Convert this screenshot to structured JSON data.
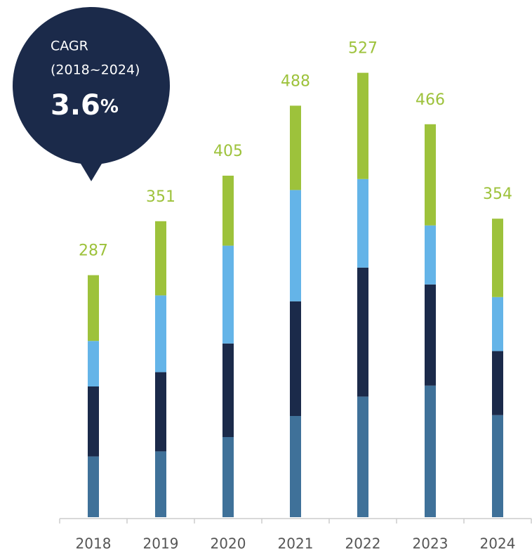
{
  "chart_data": {
    "type": "stacked_bar",
    "categories": [
      "2018",
      "2019",
      "2020",
      "2021",
      "2022",
      "2023",
      "2024"
    ],
    "series": [
      {
        "color": "#3f7199",
        "values": [
          72,
          78,
          95,
          120,
          143,
          156,
          121
        ]
      },
      {
        "color": "#1b2a4a",
        "values": [
          83,
          94,
          111,
          136,
          153,
          120,
          76
        ]
      },
      {
        "color": "#64b4e8",
        "values": [
          54,
          91,
          116,
          132,
          105,
          70,
          64
        ]
      },
      {
        "color": "#9dc23b",
        "values": [
          78,
          88,
          83,
          100,
          126,
          120,
          93
        ]
      }
    ],
    "totals": [
      287,
      351,
      405,
      488,
      527,
      466,
      354
    ],
    "totals_color": "#9dc23b",
    "ylim": [
      0,
      600
    ],
    "annotation": {
      "label": "CAGR",
      "period": "(2018~2024)",
      "value": "3.6",
      "unit": "%",
      "color": "#1b2a4a"
    }
  }
}
